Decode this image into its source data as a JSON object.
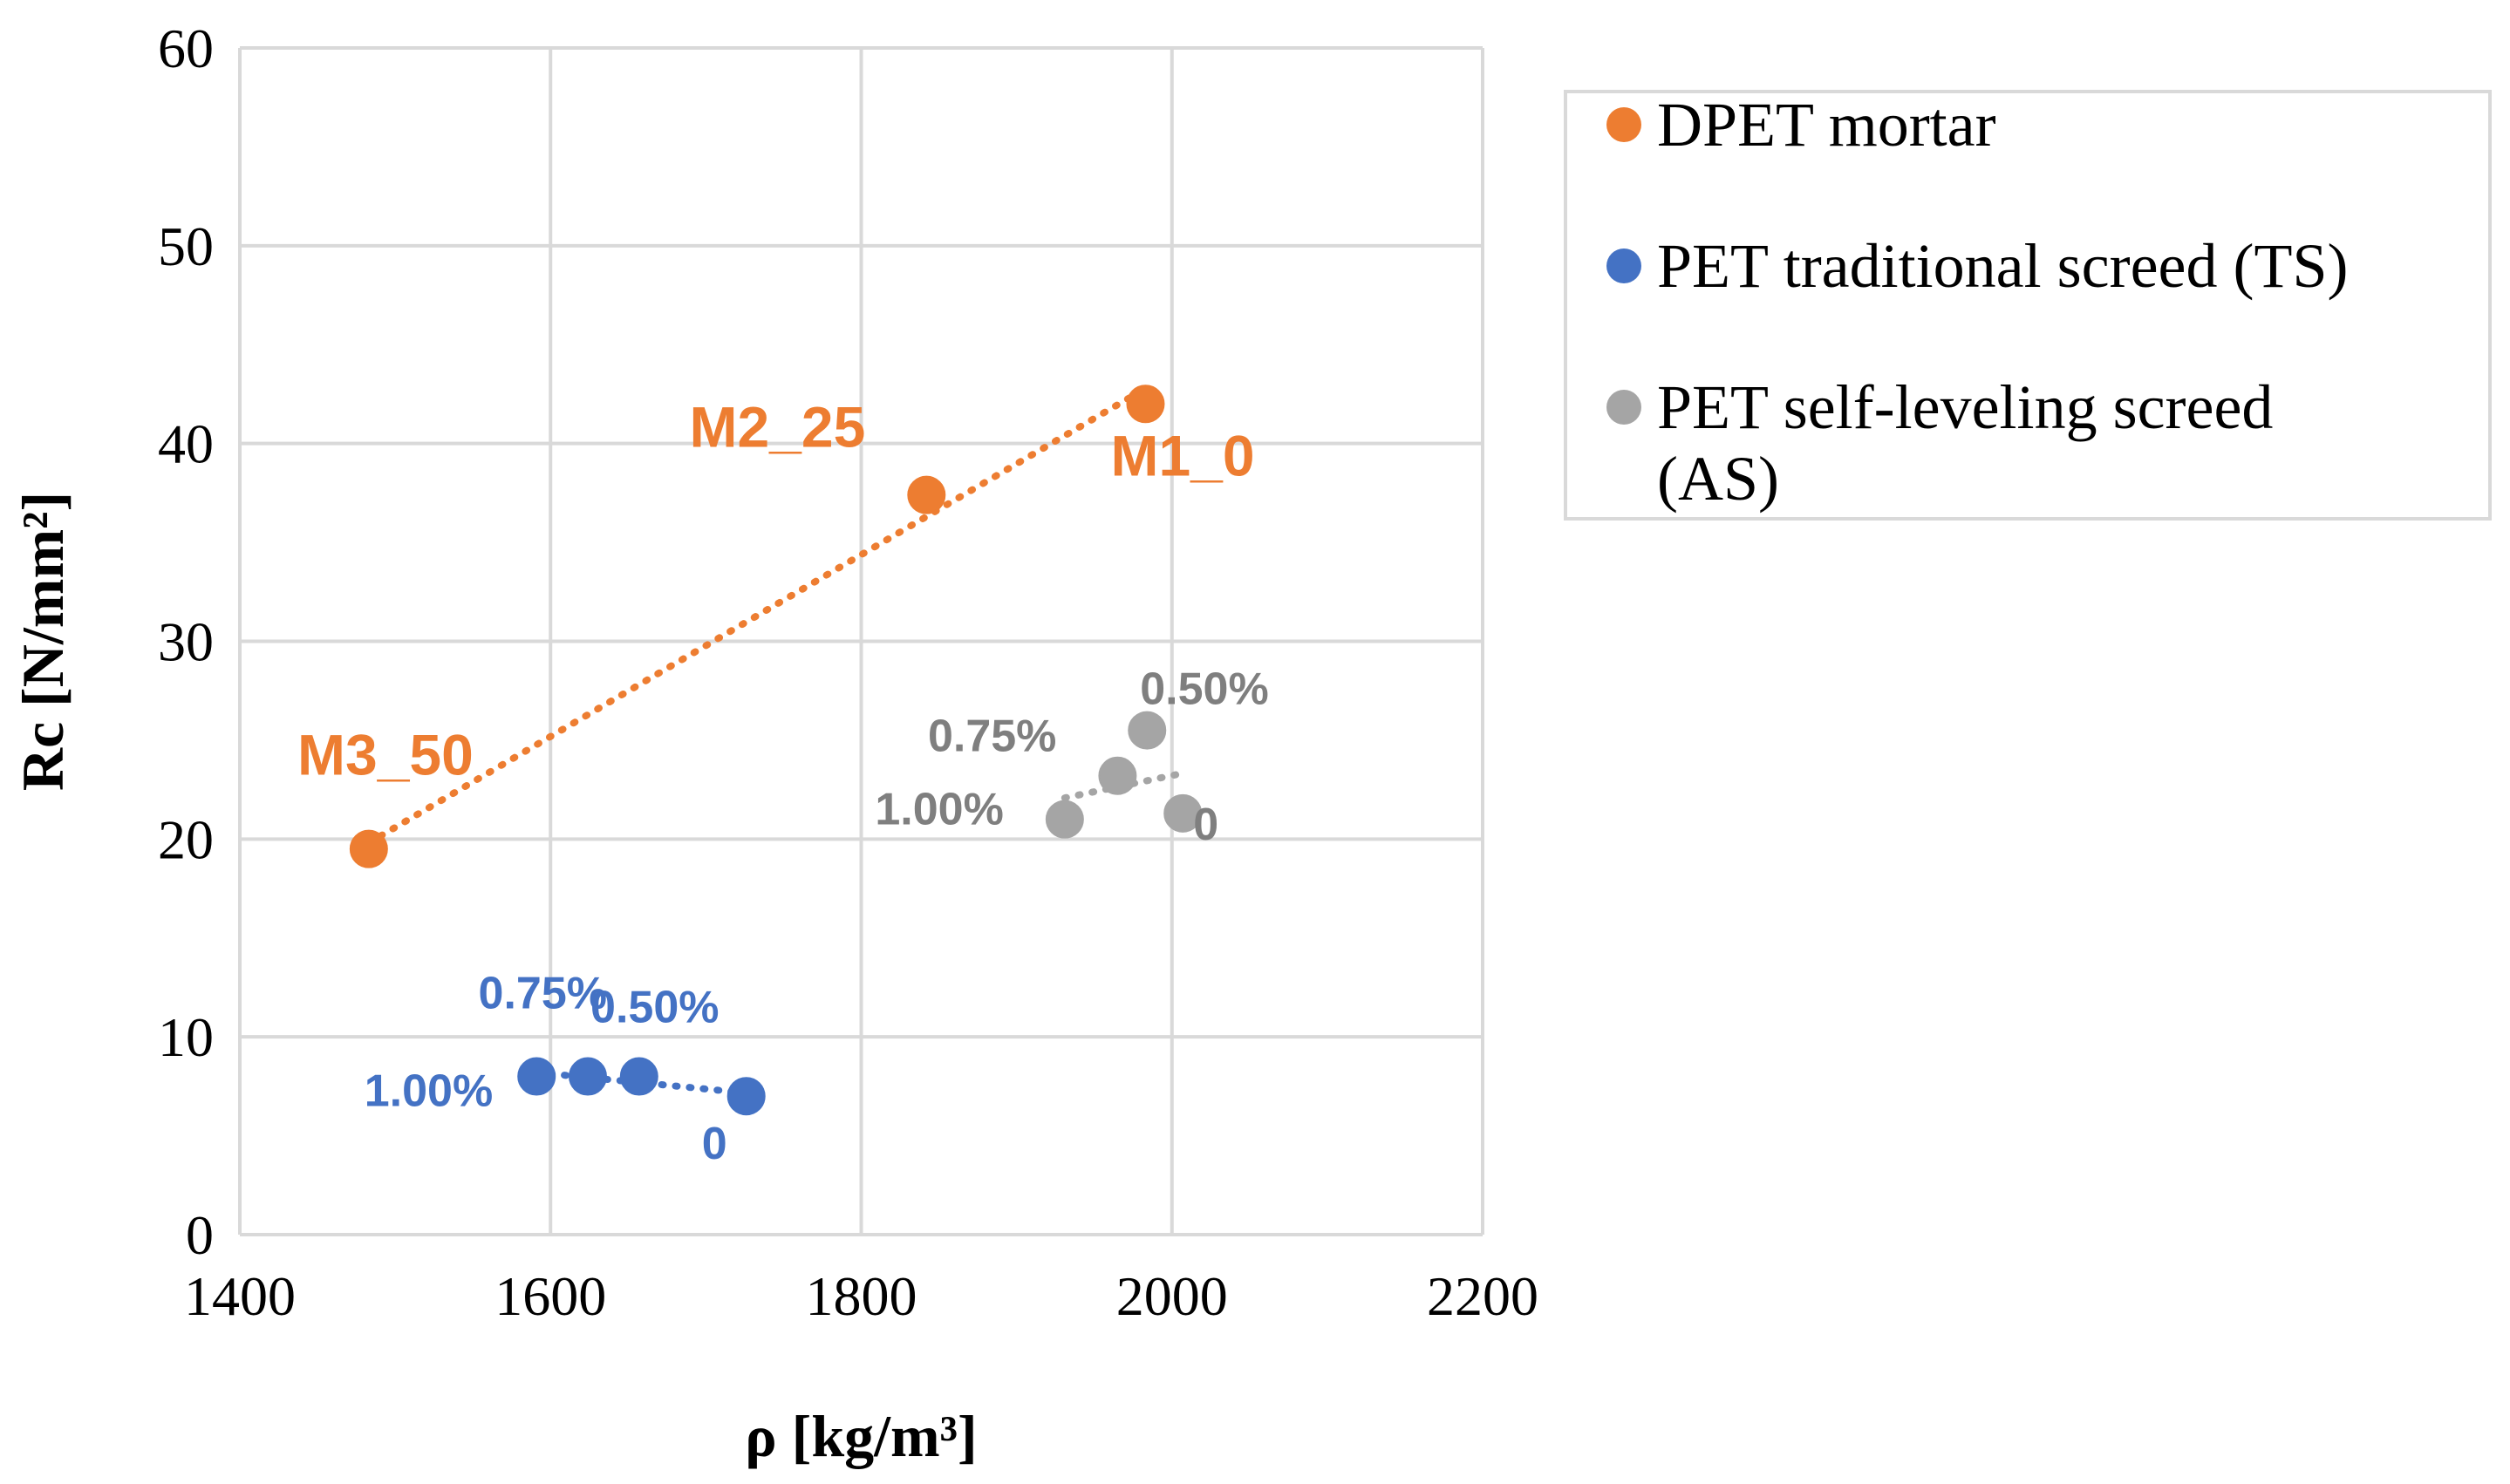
{
  "chart_data": {
    "type": "scatter",
    "xlabel": "ρ [kg/m³]",
    "ylabel": "Rc [N/mm²]",
    "xlim": [
      1400,
      2200
    ],
    "ylim": [
      0,
      60
    ],
    "x_ticks": [
      "1400",
      "1600",
      "1800",
      "2000",
      "2200"
    ],
    "y_ticks": [
      "0",
      "10",
      "20",
      "30",
      "40",
      "50",
      "60"
    ],
    "grid": true,
    "legend_position": "top-right",
    "trendline": "linear dotted",
    "series": [
      {
        "name": "DPET mortar",
        "color": "#ED7D31",
        "label_color": "#ED7D31",
        "points": [
          {
            "x": 1983,
            "y": 42.0,
            "label": "M1_0"
          },
          {
            "x": 1842,
            "y": 37.4,
            "label": "M2_25"
          },
          {
            "x": 1483,
            "y": 19.5,
            "label": "M3_50"
          }
        ]
      },
      {
        "name": "PET traditional screed (TS)",
        "color": "#4472C4",
        "label_color": "#4472C4",
        "points": [
          {
            "x": 1726,
            "y": 7.0,
            "label": "0"
          },
          {
            "x": 1657,
            "y": 8.0,
            "label": "0.50%"
          },
          {
            "x": 1624,
            "y": 8.0,
            "label": "0.75%"
          },
          {
            "x": 1591,
            "y": 8.0,
            "label": "1.00%"
          }
        ]
      },
      {
        "name": "PET self-leveling  screed (AS)",
        "legend_lines": [
          "PET self-leveling  screed",
          "(AS)"
        ],
        "color": "#A5A5A5",
        "label_color": "#7F7F7F",
        "points": [
          {
            "x": 2007,
            "y": 21.3,
            "label": "0"
          },
          {
            "x": 1984,
            "y": 25.5,
            "label": "0.50%"
          },
          {
            "x": 1965,
            "y": 23.2,
            "label": "0.75%"
          },
          {
            "x": 1931,
            "y": 21.0,
            "label": "1.00%"
          }
        ]
      }
    ]
  }
}
